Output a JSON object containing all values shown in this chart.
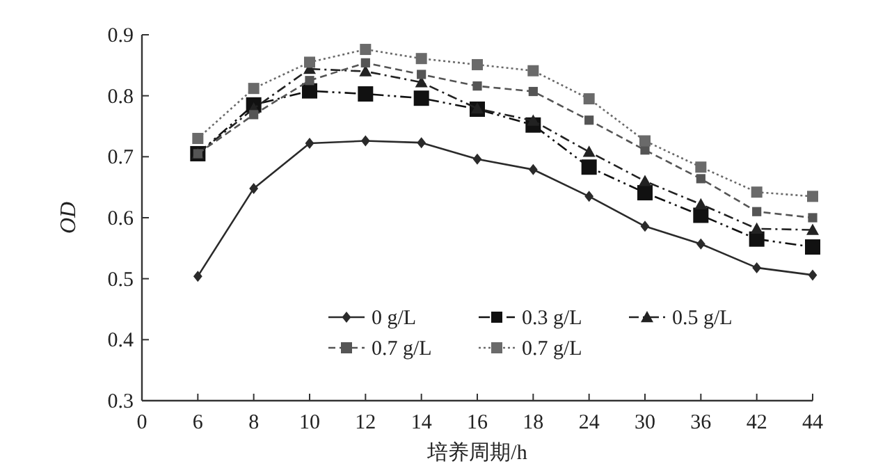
{
  "chart_data": {
    "type": "line",
    "xlabel": "培养周期/h",
    "ylabel": "OD",
    "categories": [
      "0",
      "6",
      "8",
      "10",
      "12",
      "14",
      "16",
      "18",
      "24",
      "30",
      "36",
      "42",
      "44"
    ],
    "ylim": [
      0.3,
      0.9
    ],
    "yticks": [
      0.3,
      0.4,
      0.5,
      0.6,
      0.7,
      0.8,
      0.9
    ],
    "grid": false,
    "legend": "bottom",
    "series": [
      {
        "name": "0 g/L",
        "color": "#2a2a2a",
        "marker": "diamond",
        "line_style": "solid",
        "values": [
          null,
          0.504,
          0.648,
          0.722,
          0.726,
          0.723,
          0.696,
          0.679,
          0.635,
          0.586,
          0.557,
          0.518,
          0.506
        ]
      },
      {
        "name": "0.3 g/L",
        "color": "#111111",
        "marker": "square",
        "line_style": "dashdotdot",
        "values": [
          null,
          0.705,
          0.785,
          0.808,
          0.803,
          0.796,
          0.778,
          0.752,
          0.683,
          0.641,
          0.604,
          0.565,
          0.552
        ]
      },
      {
        "name": "0.5 g/L",
        "color": "#222222",
        "marker": "triangle",
        "line_style": "dashdot",
        "values": [
          null,
          0.705,
          0.779,
          0.844,
          0.84,
          0.822,
          0.779,
          0.759,
          0.708,
          0.66,
          0.622,
          0.582,
          0.58
        ]
      },
      {
        "name": "0.7 g/L",
        "color": "#555555",
        "marker": "square",
        "line_style": "dashed",
        "values": [
          null,
          0.705,
          0.769,
          0.825,
          0.854,
          0.835,
          0.816,
          0.807,
          0.76,
          0.711,
          0.664,
          0.61,
          0.6
        ]
      },
      {
        "name": "0.7 g/L",
        "color": "#6a6a6a",
        "marker": "square",
        "line_style": "dotted",
        "values": [
          null,
          0.73,
          0.812,
          0.855,
          0.876,
          0.861,
          0.851,
          0.841,
          0.795,
          0.726,
          0.683,
          0.642,
          0.635
        ]
      }
    ]
  }
}
